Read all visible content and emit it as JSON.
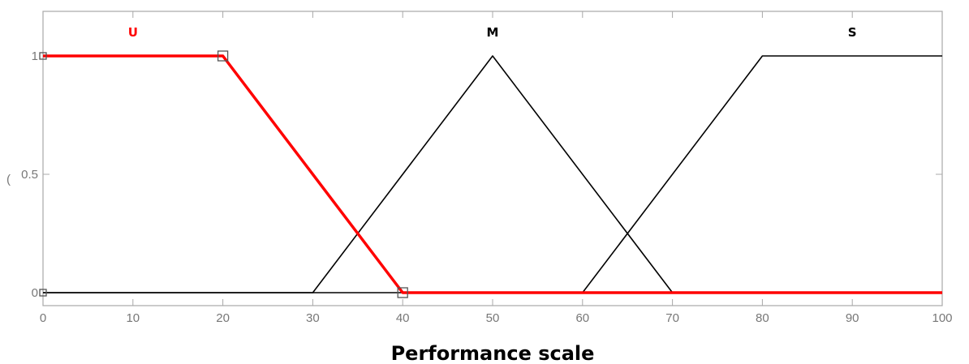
{
  "chart_data": {
    "type": "line",
    "xlabel": "Performance scale",
    "ylabel": "",
    "xlim": [
      0,
      100
    ],
    "ylim": [
      -0.05,
      1.2
    ],
    "grid": false,
    "x_ticks": [
      0,
      10,
      20,
      30,
      40,
      50,
      60,
      70,
      80,
      90,
      100
    ],
    "y_ticks": [
      0,
      0.5,
      1
    ],
    "x_tick_labels": [
      "0",
      "10",
      "20",
      "30",
      "40",
      "50",
      "60",
      "70",
      "80",
      "90",
      "100"
    ],
    "y_tick_labels": [
      "0",
      "0.5",
      "1"
    ],
    "y_label_artifact": "(",
    "series": [
      {
        "name": "U",
        "color": "#ff0000",
        "highlighted": true,
        "points": [
          [
            0,
            1
          ],
          [
            20,
            1
          ],
          [
            40,
            0
          ],
          [
            100,
            0
          ]
        ],
        "handles": [
          [
            0,
            1
          ],
          [
            20,
            1
          ],
          [
            40,
            0
          ],
          [
            0,
            0
          ]
        ]
      },
      {
        "name": "M",
        "color": "#000000",
        "highlighted": false,
        "points": [
          [
            0,
            0
          ],
          [
            30,
            0
          ],
          [
            50,
            1
          ],
          [
            70,
            0
          ],
          [
            100,
            0
          ]
        ]
      },
      {
        "name": "S",
        "color": "#000000",
        "highlighted": false,
        "points": [
          [
            0,
            0
          ],
          [
            60,
            0
          ],
          [
            80,
            1
          ],
          [
            100,
            1
          ]
        ]
      }
    ],
    "labels": [
      {
        "text": "U",
        "x": 10,
        "y": 1.1,
        "color": "#ff0000"
      },
      {
        "text": "M",
        "x": 50,
        "y": 1.1,
        "color": "#000000"
      },
      {
        "text": "S",
        "x": 90,
        "y": 1.1,
        "color": "#000000"
      }
    ]
  }
}
